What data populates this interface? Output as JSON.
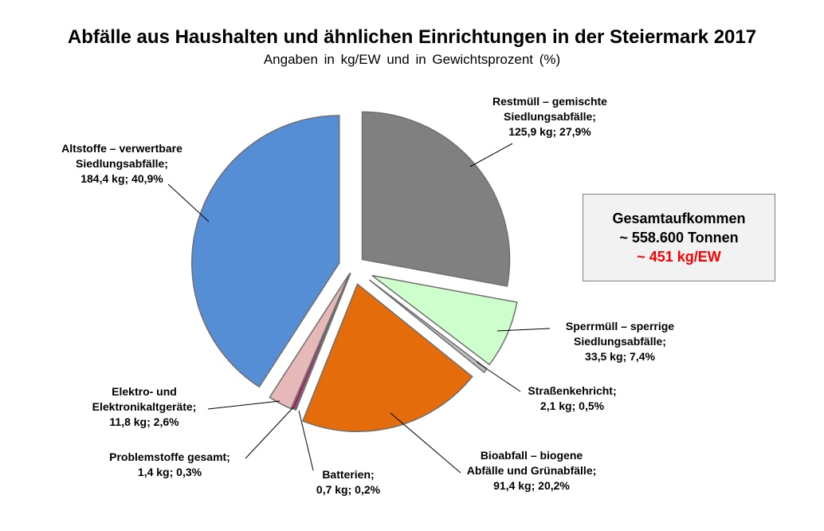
{
  "chart_data": {
    "type": "pie",
    "title": "Abfälle aus Haushalten und ähnlichen Einrichtungen in der Steiermark 2017",
    "subtitle": "Angaben  in kg/EW  und  in  Gewichtsprozent  (%)",
    "unit": "kg/EW",
    "slices": [
      {
        "key": "restmuell",
        "lines": [
          "Restmüll – gemischte",
          "Siedlungsabfälle;",
          "125,9 kg; 27,9%"
        ],
        "kg": 125.9,
        "percent": 27.9,
        "color": "#808080"
      },
      {
        "key": "sperrmuell",
        "lines": [
          "Sperrmüll – sperrige",
          "Siedlungsabfälle;",
          "33,5 kg; 7,4%"
        ],
        "kg": 33.5,
        "percent": 7.4,
        "color": "#ccffcc"
      },
      {
        "key": "strassenkehricht",
        "lines": [
          "Straßenkehricht;",
          "2,1 kg; 0,5%"
        ],
        "kg": 2.1,
        "percent": 0.5,
        "color": "#bfbfbf"
      },
      {
        "key": "bioabfall",
        "lines": [
          "Bioabfall – biogene",
          "Abfälle und Grünabfälle;",
          "91,4 kg; 20,2%"
        ],
        "kg": 91.4,
        "percent": 20.2,
        "color": "#e46c0a"
      },
      {
        "key": "batterien",
        "lines": [
          "Batterien;",
          "0,7 kg; 0,2%"
        ],
        "kg": 0.7,
        "percent": 0.2,
        "color": "#7030a0"
      },
      {
        "key": "problemstoffe",
        "lines": [
          "Problemstoffe gesamt;",
          "1,4 kg; 0,3%"
        ],
        "kg": 1.4,
        "percent": 0.3,
        "color": "#cc0066"
      },
      {
        "key": "elektro",
        "lines": [
          "Elektro- und",
          "Elektronikaltgeräte;",
          "11,8 kg; 2,6%"
        ],
        "kg": 11.8,
        "percent": 2.6,
        "color": "#e6b9b8"
      },
      {
        "key": "altstoffe",
        "lines": [
          "Altstoffe – verwertbare",
          "Siedlungsabfälle;",
          "184,4 kg; 40,9%"
        ],
        "kg": 184.4,
        "percent": 40.9,
        "color": "#558ed5"
      }
    ]
  },
  "summary": {
    "title": "Gesamtaufkommen",
    "total": "~ 558.600 Tonnen",
    "per_capita": "~ 451 kg/EW",
    "per_capita_color": "#ff0000"
  }
}
